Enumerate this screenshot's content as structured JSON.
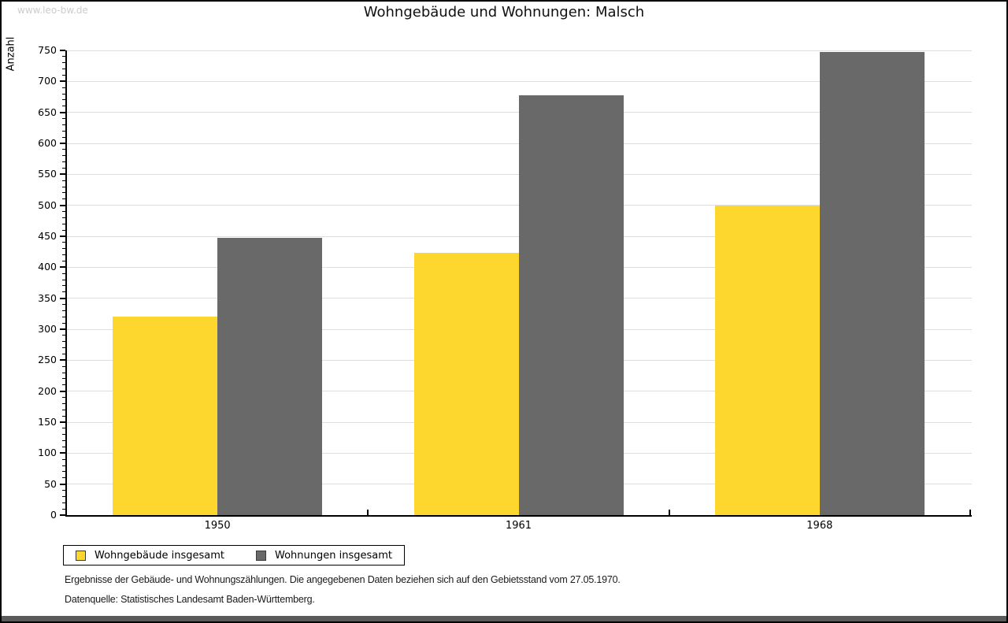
{
  "watermark": "www.leo-bw.de",
  "title": "Wohngebäude und Wohnungen: Malsch",
  "chart_data": {
    "type": "bar",
    "title": "Wohngebäude und Wohnungen: Malsch",
    "xlabel": "",
    "ylabel": "Anzahl",
    "categories": [
      "1950",
      "1961",
      "1968"
    ],
    "series": [
      {
        "name": "Wohngebäude insgesamt",
        "color": "#fdd62e",
        "values": [
          320,
          423,
          499
        ]
      },
      {
        "name": "Wohnungen insgesamt",
        "color": "#696969",
        "values": [
          447,
          678,
          748
        ]
      }
    ],
    "ylim": [
      0,
      750
    ],
    "ytick_step": 50,
    "minor_tick_step": 10,
    "grid": true,
    "legend_position": "bottom-left"
  },
  "legend": {
    "items": [
      {
        "label": "Wohngebäude insgesamt",
        "color": "#fdd62e"
      },
      {
        "label": "Wohnungen insgesamt",
        "color": "#696969"
      }
    ]
  },
  "footnotes": {
    "line1": "Ergebnisse der Gebäude- und Wohnungszählungen. Die angegebenen Daten beziehen sich auf den Gebietsstand vom 27.05.1970.",
    "line2": "Datenquelle: Statistisches Landesamt Baden-Württemberg."
  },
  "colors": {
    "grid": "#dedede",
    "axis": "#000000",
    "watermark": "#cccccc",
    "bottom_band": "#5a5a5a",
    "background": "#ffffff"
  }
}
